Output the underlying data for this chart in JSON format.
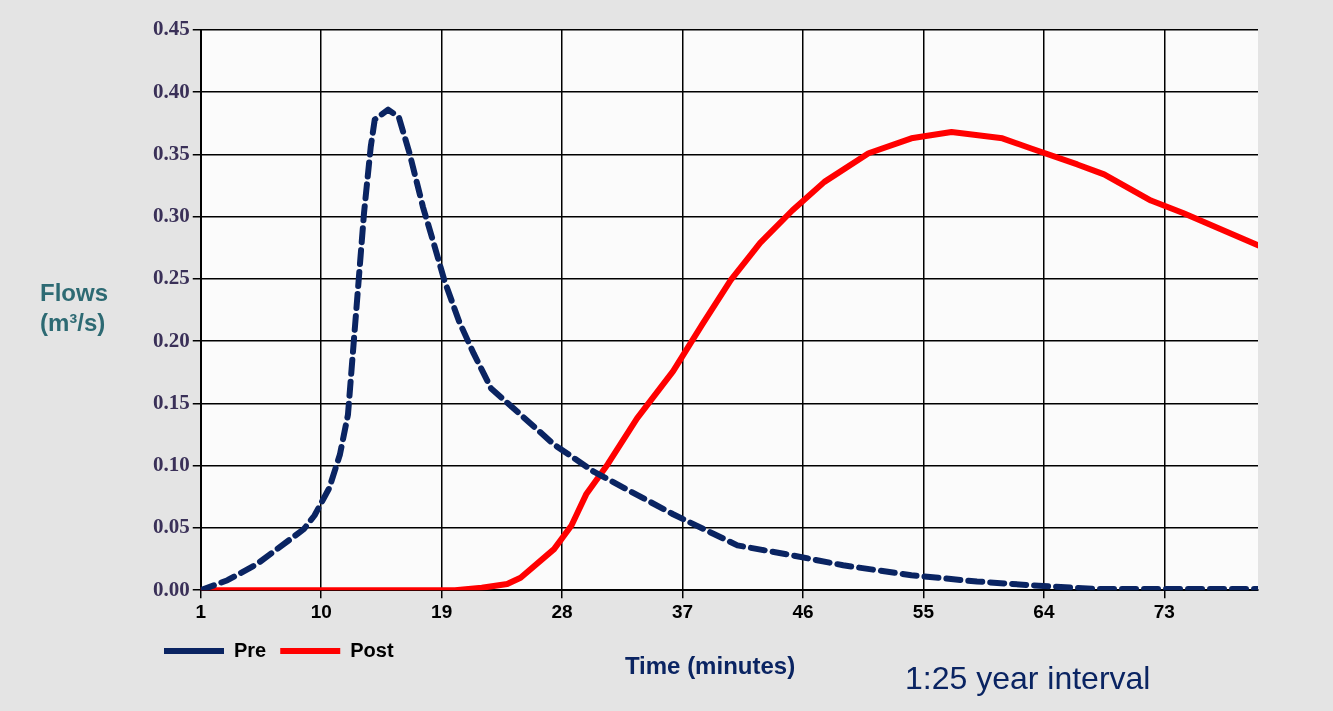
{
  "chart_data": {
    "type": "line",
    "xlabel": "Time (minutes)",
    "ylabel": "Flows (m³/s)",
    "annotations": [
      "1:25 year interval"
    ],
    "xlim": [
      1,
      80
    ],
    "xticks": [
      1,
      10,
      19,
      28,
      37,
      46,
      55,
      64,
      73
    ],
    "ylim": [
      0,
      0.45
    ],
    "yticks": [
      {
        "value": 0,
        "label": "0.00"
      },
      {
        "value": 0.05,
        "label": "0.05"
      },
      {
        "value": 0.1,
        "label": "0.10"
      },
      {
        "value": 0.15,
        "label": "0.15"
      },
      {
        "value": 0.2,
        "label": "0.20"
      },
      {
        "value": 0.25,
        "label": "0.25"
      },
      {
        "value": 0.3,
        "label": "0.30"
      },
      {
        "value": 0.35,
        "label": "0.35"
      },
      {
        "value": 0.4,
        "label": "0.40"
      },
      {
        "value": 0.45,
        "label": "0.45"
      }
    ],
    "grid": true,
    "legend": "bottom left",
    "marker": "none",
    "series": [
      {
        "name": "Pre",
        "color": "#0a2462",
        "line_style": "dashed",
        "x": [
          1,
          3,
          5.2,
          8.7,
          9.5,
          10.6,
          11.4,
          12,
          12.4,
          12.8,
          13.2,
          13.7,
          14,
          15,
          15.8,
          16.6,
          17.6,
          18.4,
          19.2,
          20.3,
          21.4,
          22.7,
          24.9,
          27.4,
          30.4,
          36.3,
          41.1,
          45.2,
          49,
          54.1,
          59,
          63,
          67.9,
          80
        ],
        "values": [
          0,
          0.008,
          0.021,
          0.049,
          0.06,
          0.082,
          0.109,
          0.141,
          0.195,
          0.249,
          0.303,
          0.356,
          0.378,
          0.386,
          0.38,
          0.351,
          0.308,
          0.279,
          0.249,
          0.216,
          0.19,
          0.162,
          0.141,
          0.117,
          0.095,
          0.061,
          0.036,
          0.028,
          0.02,
          0.012,
          0.007,
          0.004,
          0.001,
          0.001
        ]
      },
      {
        "name": "Post",
        "color": "#ff0000",
        "line_style": "solid",
        "x": [
          1,
          20,
          22,
          23.9,
          24.9,
          27.4,
          28.7,
          29.8,
          31.4,
          33.6,
          36.3,
          38.5,
          40.6,
          42.8,
          45.2,
          47.6,
          50.9,
          54.1,
          57.1,
          60.9,
          63,
          66.5,
          68.5,
          72,
          74.4,
          80
        ],
        "values": [
          0,
          0,
          0.002,
          0.005,
          0.01,
          0.033,
          0.052,
          0.077,
          0.101,
          0.138,
          0.176,
          0.214,
          0.249,
          0.279,
          0.305,
          0.328,
          0.351,
          0.363,
          0.368,
          0.363,
          0.355,
          0.342,
          0.334,
          0.313,
          0.303,
          0.277
        ]
      }
    ]
  }
}
